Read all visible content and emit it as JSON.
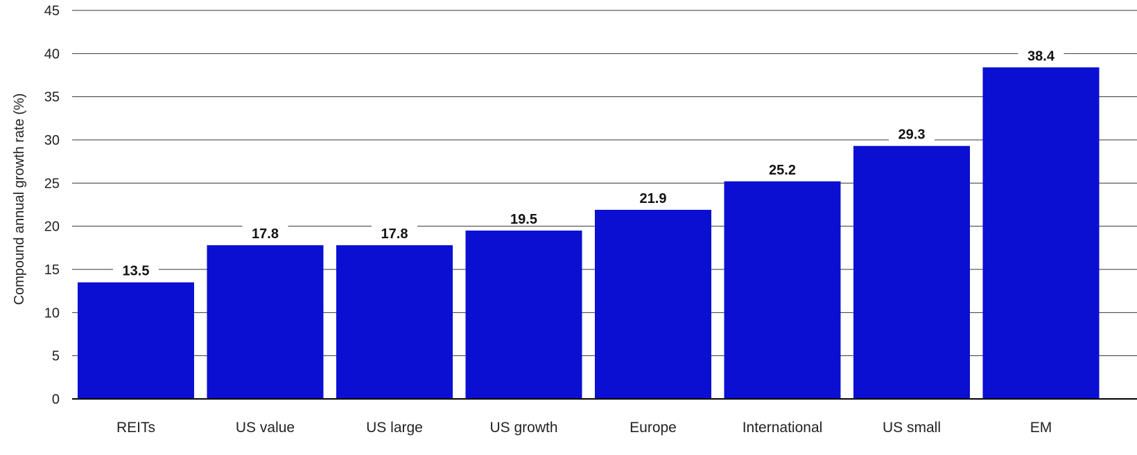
{
  "chart_data": {
    "type": "bar",
    "categories": [
      "REITs",
      "US value",
      "US large",
      "US growth",
      "Europe",
      "International",
      "US small",
      "EM"
    ],
    "values": [
      13.5,
      17.8,
      17.8,
      19.5,
      21.9,
      25.2,
      29.3,
      38.4
    ],
    "data_labels": [
      "13.5",
      "17.8",
      "17.8",
      "19.5",
      "21.9",
      "25.2",
      "29.3",
      "38.4"
    ],
    "title": "",
    "xlabel": "",
    "ylabel": "Compound annual growth rate (%)",
    "ylim": [
      0,
      45
    ],
    "yticks": [
      0,
      5,
      10,
      15,
      20,
      25,
      30,
      35,
      40,
      45
    ],
    "grid": true,
    "legend": "none",
    "colors": {
      "bar": "#0a0fd2",
      "grid": "#333333",
      "baseline": "#000000"
    }
  }
}
